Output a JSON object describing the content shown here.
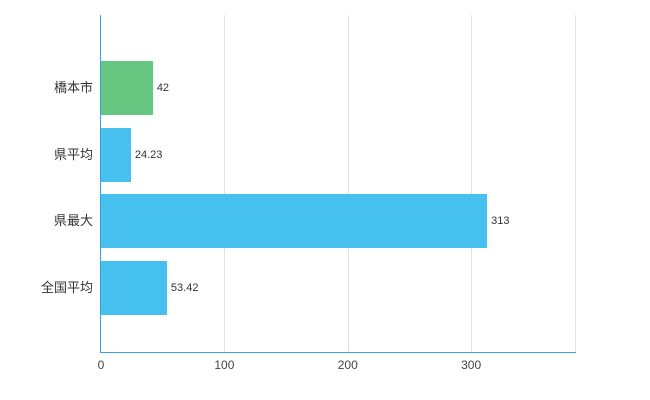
{
  "chart_data": {
    "type": "bar",
    "orientation": "horizontal",
    "title": "",
    "xlabel": "",
    "ylabel": "",
    "categories": [
      "橋本市",
      "県平均",
      "県最大",
      "全国平均"
    ],
    "values": [
      42,
      24.23,
      313,
      53.42
    ],
    "value_labels": [
      "42",
      "24.23",
      "313",
      "53.42"
    ],
    "bar_colors": [
      "#66c57e",
      "#45c0ef",
      "#45c0ef",
      "#45c0ef"
    ],
    "x_ticks": [
      0,
      100,
      200,
      300
    ],
    "x_tick_labels": [
      "0",
      "100",
      "200",
      "300"
    ],
    "xlim": [
      0,
      385
    ],
    "grid": true,
    "legend": false,
    "colors": {
      "axis": "#3aa0e0",
      "grid": "#e2e2e2",
      "text": "#333333",
      "background": "#ffffff"
    }
  }
}
